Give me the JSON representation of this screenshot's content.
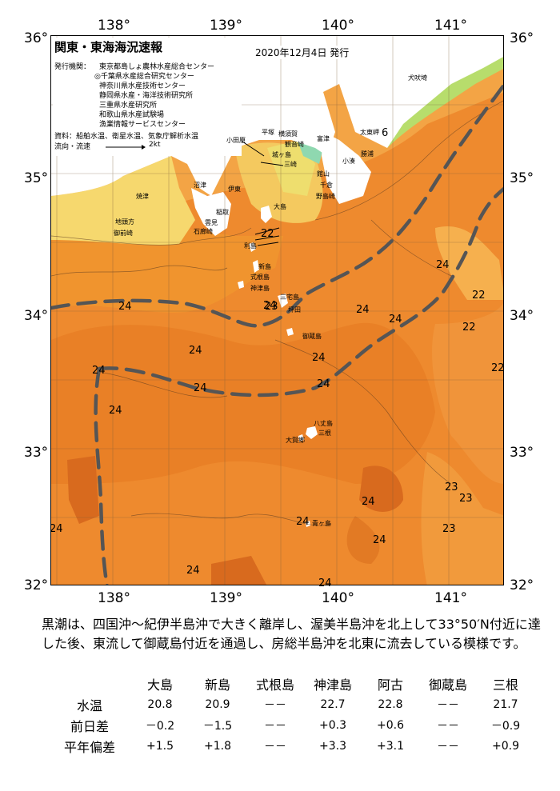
{
  "header": {
    "title": "関東・東海海況速報",
    "issued": "2020年12月4日 発行",
    "org_label": "発行機関：",
    "orgs": [
      "東京都島しょ農林水産総合センター",
      "◎千葉県水産総合研究センター",
      "神奈川県水産技術センター",
      "静岡県水産・海洋技術研究所",
      "三重県水産研究所",
      "和歌山県水産試験場",
      "漁業情報サービスセンター"
    ],
    "sources": "資料：船舶水温、衛星水温、気象庁解析水温",
    "flow_label": "流向・流速",
    "flow_value": "2kt"
  },
  "axes": {
    "lon_ticks": [
      "138°",
      "139°",
      "140°",
      "141°"
    ],
    "lat_ticks": [
      "36°",
      "35°",
      "34°",
      "33°",
      "32°"
    ],
    "lat_ticks_right": [
      "36°",
      "35°",
      "34°",
      "33°",
      "32°"
    ]
  },
  "places": [
    {
      "name": "犬吠埼"
    },
    {
      "name": "太東岬"
    },
    {
      "name": "勝浦"
    },
    {
      "name": "小湊"
    },
    {
      "name": "館山"
    },
    {
      "name": "千倉"
    },
    {
      "name": "野島崎"
    },
    {
      "name": "富津"
    },
    {
      "name": "横須賀"
    },
    {
      "name": "観音崎"
    },
    {
      "name": "平塚"
    },
    {
      "name": "城ヶ島"
    },
    {
      "name": "三崎"
    },
    {
      "name": "小田原"
    },
    {
      "name": "伊東"
    },
    {
      "name": "稲取"
    },
    {
      "name": "沼津"
    },
    {
      "name": "焼津"
    },
    {
      "name": "御前崎"
    },
    {
      "name": "地頭方"
    },
    {
      "name": "雲見"
    },
    {
      "name": "石廊崎"
    },
    {
      "name": "大島"
    },
    {
      "name": "利島"
    },
    {
      "name": "新島"
    },
    {
      "name": "式根島"
    },
    {
      "name": "神津島"
    },
    {
      "name": "三宅島"
    },
    {
      "name": "坪田"
    },
    {
      "name": "御蔵島"
    },
    {
      "name": "八丈島"
    },
    {
      "name": "三根"
    },
    {
      "name": "大賀郷"
    },
    {
      "name": "青ヶ島"
    }
  ],
  "temp_labels": [
    "24",
    "24",
    "24",
    "24",
    "24",
    "24",
    "24",
    "24",
    "24",
    "24",
    "24",
    "24",
    "24",
    "24",
    "24",
    "22",
    "22",
    "22",
    "22",
    "23",
    "23",
    "23",
    "23",
    "24",
    "6",
    "24"
  ],
  "summary": "黒潮は、四国沖～紀伊半島沖で大きく離岸し、渥美半島沖を北上して33°50′N付近に達した後、東流して御蔵島付近を通過し、房総半島沖を北東に流去している模様です。",
  "stats": {
    "columns": [
      "大島",
      "新島",
      "式根島",
      "神津島",
      "阿古",
      "御蔵島",
      "三根"
    ],
    "rows": [
      {
        "label": "水温",
        "values": [
          "20.8",
          "20.9",
          "－－",
          "22.7",
          "22.8",
          "－－",
          "21.7"
        ]
      },
      {
        "label": "前日差",
        "values": [
          "－0.2",
          "－1.5",
          "－－",
          "+0.3",
          "+0.6",
          "－－",
          "－0.9"
        ]
      },
      {
        "label": "平年偏差",
        "values": [
          "+1.5",
          "+1.8",
          "－－",
          "+3.3",
          "+3.1",
          "－－",
          "+0.9"
        ]
      }
    ]
  },
  "colors": {
    "sea_warm": "#ee8a2e",
    "sea_hot": "#e0701e",
    "sea_mild": "#f3a445",
    "coastal_yellow": "#f7e07a",
    "cold_green": "#7fd47a",
    "cold_cyan": "#52c8d6",
    "land": "#ffffff",
    "kuroshio_axis": "#555555"
  }
}
